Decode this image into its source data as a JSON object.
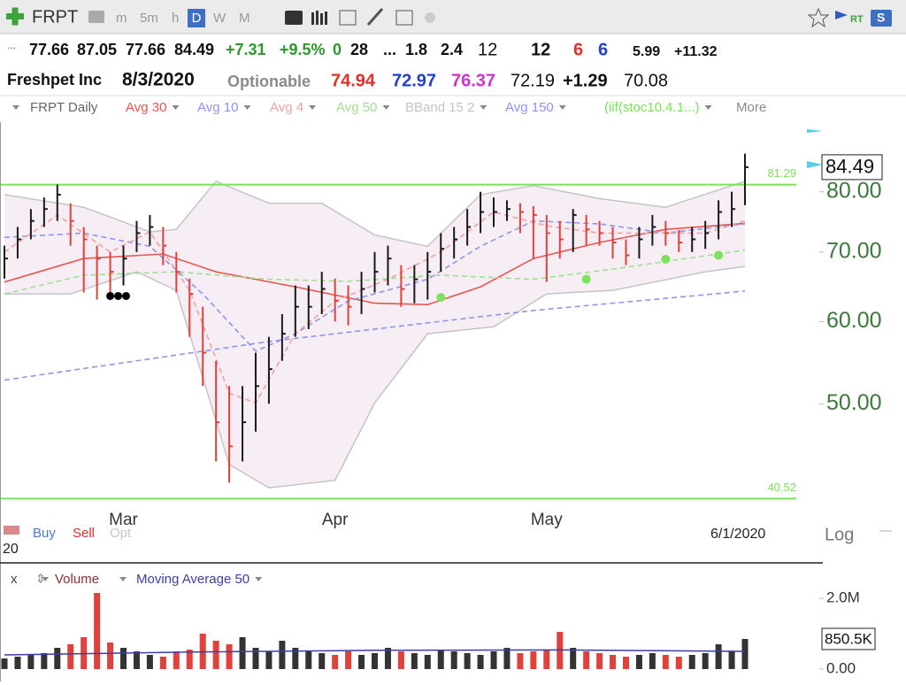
{
  "toolbar": {
    "symbol": "FRPT",
    "intervals": [
      "m",
      "5m",
      "h",
      "D",
      "W",
      "M"
    ],
    "realtime": "RT",
    "scan": "S"
  },
  "quote_line_1": [
    "...",
    "77.66",
    "87.05",
    "77.66",
    "84.49",
    "+7.31",
    "+9.5%",
    "0",
    "28",
    "...",
    "1.8",
    "2.4",
    "12",
    "12",
    "6",
    "6",
    "5.99",
    "+11.32"
  ],
  "quote_line_2": [
    "Freshpet Inc",
    "8/3/2020",
    "Optionable",
    "74.94",
    "72.97",
    "76.37",
    "72.19",
    "+1.29",
    "70.08"
  ],
  "legend_more": "More",
  "footer": {
    "partial_label": "20",
    "buy": "Buy",
    "sell": "Sell",
    "opt": "Opt",
    "crosshair_date": "6/1/2020",
    "scale": "Log"
  },
  "volume_close": "x",
  "chart_data": [
    {
      "type": "ohlc",
      "name": "FRPT Daily",
      "log_scale": true,
      "categories": [
        null,
        null,
        null,
        null,
        null,
        null,
        null,
        null,
        null,
        "Mar",
        null,
        null,
        null,
        null,
        null,
        null,
        null,
        null,
        null,
        null,
        null,
        null,
        null,
        null,
        null,
        "Apr",
        null,
        null,
        null,
        null,
        null,
        null,
        null,
        null,
        null,
        null,
        null,
        null,
        null,
        null,
        null,
        "May",
        null,
        null,
        null,
        null,
        null,
        null,
        null,
        null,
        null,
        null,
        null,
        null,
        null,
        null,
        null
      ],
      "high": [
        71,
        74,
        77,
        79,
        81.3,
        78,
        74,
        71,
        70,
        71,
        75,
        76,
        74,
        70,
        66,
        62,
        55,
        52,
        52,
        56,
        58,
        61,
        65,
        65,
        67,
        66,
        65,
        67,
        70,
        71,
        68,
        68,
        70,
        73,
        74,
        77,
        80,
        79,
        78.5,
        78,
        77.5,
        76,
        75,
        77,
        76,
        75,
        74,
        72,
        74,
        76,
        75,
        73.5,
        74,
        75,
        78.5,
        80,
        87.05
      ],
      "low": [
        66,
        69,
        72,
        74,
        75,
        71,
        64,
        63,
        63.5,
        65,
        70,
        71,
        68,
        64,
        58,
        52,
        44,
        42,
        44,
        47,
        50,
        55,
        58,
        59,
        61,
        60,
        59.5,
        61,
        64,
        65,
        62,
        62.5,
        63,
        67,
        69,
        71,
        73,
        74,
        75,
        73,
        69,
        65.5,
        69,
        70,
        71,
        71,
        69,
        68,
        69,
        71,
        71,
        70,
        70,
        70.5,
        72,
        74,
        77.66
      ],
      "close": [
        69,
        72,
        75,
        77,
        79.5,
        75,
        72,
        69,
        67,
        69,
        73,
        74,
        71,
        67,
        63.8,
        56,
        48,
        45.5,
        48,
        52,
        54,
        58.4,
        62,
        62,
        64.5,
        62.8,
        62,
        64.5,
        67,
        69,
        64.5,
        65.9,
        67,
        70.5,
        72,
        74,
        76.5,
        76.5,
        77,
        76.5,
        76,
        73,
        72,
        76,
        73.6,
        73,
        71.5,
        69.5,
        72,
        74,
        73,
        71.5,
        72,
        73,
        76.5,
        77,
        84.49
      ],
      "up_color": "#1a1a1a",
      "down_color": "#e0413a",
      "ylim": [
        40,
        93
      ],
      "yticks": [
        {
          "value": 50,
          "label": "50.00"
        },
        {
          "value": 60,
          "label": "60.00"
        },
        {
          "value": 70,
          "label": "70.00"
        },
        {
          "value": 80,
          "label": "80.00"
        }
      ],
      "levels": [
        81.29,
        40.52
      ],
      "level_color": "#7be25a",
      "bband": {
        "name": "BBand 15 2",
        "color": "#c4c4c4",
        "fill": "#f6eef4",
        "x_upper": [
          0,
          6,
          11,
          13,
          16,
          20,
          24,
          28,
          32,
          36,
          40,
          45,
          50,
          56
        ],
        "upper": [
          79.5,
          77.3,
          73.2,
          73.6,
          81.9,
          78,
          78,
          72.7,
          70.9,
          79.5,
          81.1,
          78.8,
          77.3,
          81.9
        ],
        "x_lower": [
          0,
          5,
          10,
          13,
          17,
          20,
          25,
          28,
          32,
          37,
          41,
          46,
          53,
          56
        ],
        "lower": [
          63.8,
          63.8,
          67,
          64.3,
          43.7,
          41.5,
          42.2,
          50.1,
          58.4,
          59.3,
          63.8,
          64.3,
          67,
          67.8
        ]
      },
      "lines": [
        {
          "name": "Avg 30",
          "color": "#e8554e",
          "dash": false,
          "x": [
            0,
            6,
            12,
            16,
            22,
            28,
            32,
            36,
            40,
            45,
            50,
            56
          ],
          "values": [
            65.5,
            69,
            69.7,
            67,
            64.8,
            62.5,
            62.3,
            64.8,
            69,
            71.5,
            73.6,
            74.6
          ]
        },
        {
          "name": "Avg 10",
          "color": "#8f94f0",
          "dash": true,
          "x": [
            0,
            6,
            11,
            15,
            19,
            22,
            26,
            32,
            36,
            40,
            45,
            50,
            56
          ],
          "values": [
            72.3,
            73,
            70.9,
            63.8,
            56.2,
            58.4,
            62.8,
            65.9,
            70.9,
            75,
            74.5,
            73,
            74.5
          ]
        },
        {
          "name": "Avg 4",
          "color": "#f0a0a0",
          "dash": true,
          "x": [
            0,
            4,
            8,
            11,
            14,
            17,
            19,
            22,
            25,
            29,
            33,
            37,
            41,
            45,
            49,
            53,
            56
          ],
          "values": [
            70,
            76,
            70,
            73.2,
            64.3,
            51.2,
            50.1,
            58.4,
            62.8,
            65.9,
            70,
            76.5,
            74.2,
            73,
            73,
            73,
            75
          ]
        },
        {
          "name": "Avg 50",
          "color": "#9fe08f",
          "dash": true,
          "x": [
            0,
            6,
            13,
            20,
            26,
            33,
            40,
            46,
            56
          ],
          "values": [
            63.8,
            66.5,
            67,
            65.9,
            65.6,
            66.5,
            65.9,
            67.4,
            70.3
          ]
        },
        {
          "name": "Avg 150",
          "color": "#8f94f0",
          "dash": true,
          "x": [
            0,
            20,
            40,
            56
          ],
          "values": [
            52.7,
            57.4,
            61.5,
            64.2
          ]
        }
      ],
      "signals": {
        "name": "(iif(stoc10.4.1...)",
        "color": "#7be25a",
        "x": [
          33,
          44,
          50,
          54
        ],
        "values": [
          63.3,
          65.9,
          68.9,
          69.5
        ]
      },
      "markers": {
        "color": "#000000",
        "x": [
          8,
          8.6,
          9.2
        ],
        "values": [
          63.5,
          63.5,
          63.5
        ]
      }
    },
    {
      "type": "bar",
      "name": "Volume",
      "values": [
        300000,
        350000,
        400000,
        450000,
        600000,
        700000,
        900000,
        2150000,
        750000,
        600000,
        500000,
        400000,
        350000,
        500000,
        550000,
        1000000,
        800000,
        700000,
        900000,
        600000,
        500000,
        800000,
        600000,
        500000,
        450000,
        400000,
        500000,
        400000,
        450000,
        600000,
        500000,
        450000,
        400000,
        550000,
        500000,
        450000,
        400000,
        500000,
        600000,
        450000,
        500000,
        550000,
        1050000,
        600000,
        500000,
        450000,
        400000,
        350000,
        400000,
        450000,
        400000,
        350000,
        400000,
        450000,
        700000,
        500000,
        850500
      ],
      "ylim": [
        0,
        2200000
      ],
      "yticks": [
        {
          "value": 0,
          "label": "0.00"
        },
        {
          "value": 2000000,
          "label": "2.0M"
        }
      ],
      "current": {
        "value": 850500,
        "label": "850.5K"
      },
      "lines": [
        {
          "name": "Moving Average 50",
          "color": "#3d3da8",
          "x": [
            0,
            14,
            28,
            42,
            56
          ],
          "values": [
            400000,
            480000,
            530000,
            540000,
            500000
          ]
        }
      ]
    }
  ]
}
